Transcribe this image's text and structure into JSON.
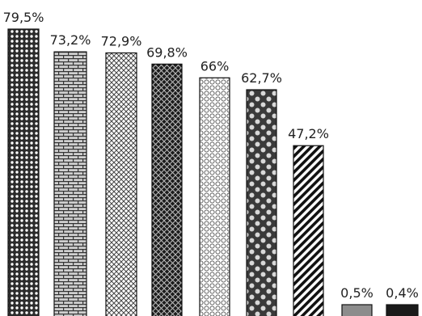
{
  "chart_data": {
    "type": "bar",
    "categories": [
      "",
      "",
      "",
      "",
      "",
      "",
      "",
      "",
      ""
    ],
    "values": [
      79.5,
      73.2,
      72.9,
      69.8,
      66,
      62.7,
      47.2,
      0.5,
      0.4
    ],
    "data_labels": [
      "79,5%",
      "73,2%",
      "72,9%",
      "69,8%",
      "66%",
      "62,7%",
      "47,2%",
      "0,5%",
      "0,4%"
    ],
    "patterns": [
      "dots-dark",
      "bricks",
      "lattice-light",
      "crosshatch-dark",
      "circles-light",
      "big-dots",
      "diagonal-stripes",
      "solid-gray",
      "solid-black"
    ],
    "title": "",
    "xlabel": "",
    "ylabel": "",
    "ylim": [
      0,
      80
    ],
    "grid": false,
    "legend": "none",
    "colors": {
      "black": "#111111",
      "dark": "#2b2b2b",
      "mid": "#9a9a9a",
      "light": "#ffffff",
      "solid_gray": "#8c8c8c",
      "solid_black": "#1a1a1a"
    }
  }
}
